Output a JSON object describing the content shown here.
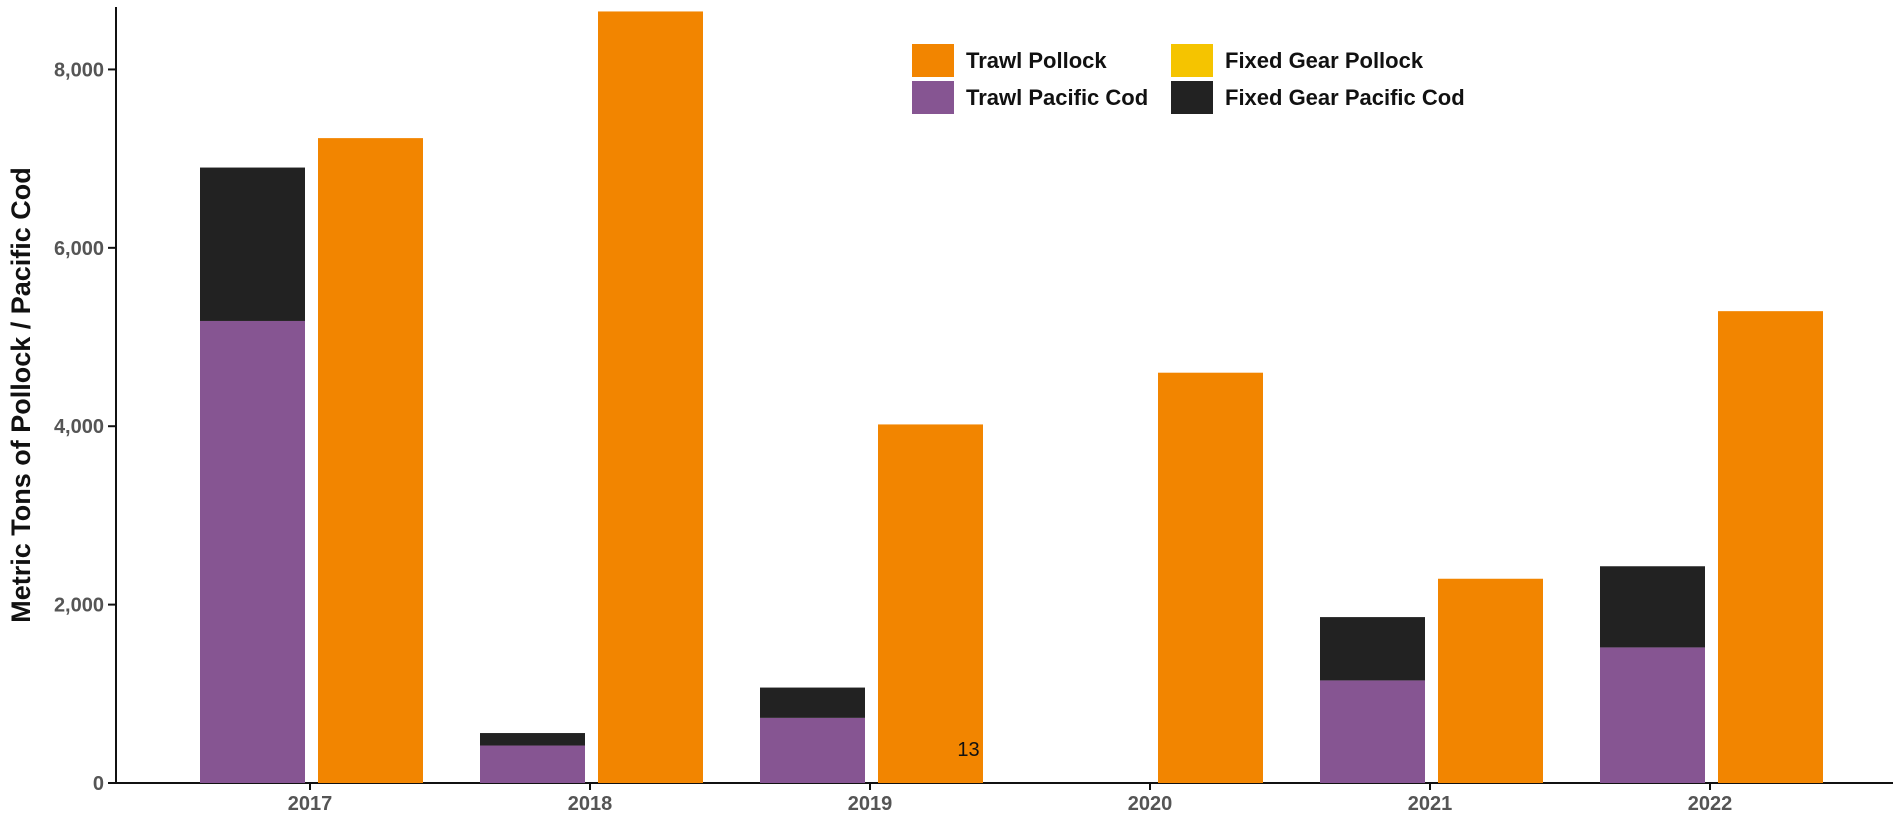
{
  "chart_data": {
    "type": "bar",
    "title": "",
    "xlabel": "",
    "ylabel": "Metric Tons of Pollock / Pacific Cod",
    "ylim": [
      0,
      8700
    ],
    "yticks": [
      0,
      2000,
      4000,
      6000,
      8000
    ],
    "ytick_labels": [
      "0",
      "2,000",
      "4,000",
      "6,000",
      "8,000"
    ],
    "categories": [
      "2017",
      "2018",
      "2019",
      "2020",
      "2021",
      "2022"
    ],
    "grid": false,
    "legend_position": "top-center",
    "layout": "grouped-stacked: Pacific Cod stack (Trawl Pacific Cod + Fixed Gear Pacific Cod) and Pollock stack (Trawl Pollock + Fixed Gear Pollock) side by side per year",
    "series": [
      {
        "name": "Trawl Pollock",
        "group": "pollock",
        "color": "#F28500",
        "values": [
          7230,
          8650,
          4020,
          4600,
          2290,
          5290
        ]
      },
      {
        "name": "Fixed Gear Pollock",
        "group": "pollock",
        "color": "#F5C400",
        "values": [
          0,
          0,
          0,
          0,
          0,
          0
        ]
      },
      {
        "name": "Trawl Pacific Cod",
        "group": "cod",
        "color": "#865592",
        "values": [
          5180,
          420,
          730,
          0,
          1150,
          1520
        ]
      },
      {
        "name": "Fixed Gear Pacific Cod",
        "group": "cod",
        "color": "#222222",
        "values": [
          1720,
          140,
          340,
          0,
          710,
          910
        ]
      }
    ],
    "annotations": [
      {
        "text": "13",
        "category": "2019",
        "group": "pollock",
        "y": 380
      }
    ]
  }
}
